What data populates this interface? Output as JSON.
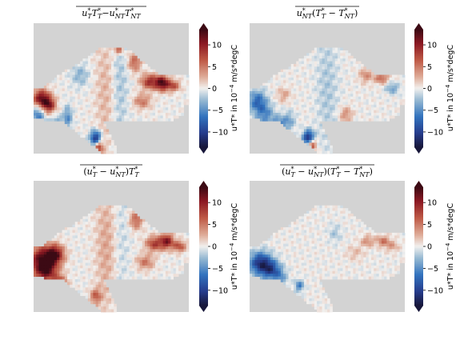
{
  "chart_data": [
    {
      "type": "heatmap",
      "title_plain": "u_T*T_T* − u_NT*T_NT*",
      "title": {
        "t1": "u",
        "t1sup": "*",
        "t1sub": "T",
        "t2": "T",
        "t2sup": "*",
        "t2sub": "T",
        "minus": "−",
        "t3": "u",
        "t3sup": "*",
        "t3sub": "NT",
        "t4": "T",
        "t4sup": "*",
        "t4sub": "NT"
      },
      "colorbar": {
        "label": "u*T* in 10⁻⁴ m/s*degC",
        "label_main": "u*T* in 10",
        "label_exp": "−4",
        "label_unit": " m/s*degC",
        "ticks": [
          10,
          5,
          0,
          -5,
          -10
        ],
        "tick_labels": [
          "10",
          "5",
          "0",
          "−5",
          "−10"
        ],
        "vmin": -13.5,
        "vmax": 13.5,
        "extend": "both",
        "colormap": "balance"
      },
      "features": [
        {
          "x": 0.47,
          "y": 0.52,
          "value": 2.5,
          "sx": 0.05,
          "sy": 0.35
        },
        {
          "x": 0.55,
          "y": 0.45,
          "value": -2.5,
          "sx": 0.04,
          "sy": 0.4
        },
        {
          "x": 0.05,
          "y": 0.58,
          "value": 12,
          "sx": 0.04,
          "sy": 0.05
        },
        {
          "x": 0.1,
          "y": 0.63,
          "value": 9,
          "sx": 0.03,
          "sy": 0.04
        },
        {
          "x": 0.03,
          "y": 0.7,
          "value": -6,
          "sx": 0.03,
          "sy": 0.06
        },
        {
          "x": 0.15,
          "y": 0.8,
          "value": -7,
          "sx": 0.03,
          "sy": 0.05
        },
        {
          "x": 0.22,
          "y": 0.72,
          "value": -5,
          "sx": 0.02,
          "sy": 0.06
        },
        {
          "x": 0.4,
          "y": 0.88,
          "value": -11,
          "sx": 0.025,
          "sy": 0.04
        },
        {
          "x": 0.42,
          "y": 0.95,
          "value": 8,
          "sx": 0.02,
          "sy": 0.03
        },
        {
          "x": 0.65,
          "y": 0.3,
          "value": 6,
          "sx": 0.03,
          "sy": 0.05
        },
        {
          "x": 0.75,
          "y": 0.45,
          "value": 9,
          "sx": 0.04,
          "sy": 0.04
        },
        {
          "x": 0.83,
          "y": 0.46,
          "value": 12,
          "sx": 0.03,
          "sy": 0.04
        },
        {
          "x": 0.9,
          "y": 0.48,
          "value": 7,
          "sx": 0.03,
          "sy": 0.03
        },
        {
          "x": 0.7,
          "y": 0.6,
          "value": 5,
          "sx": 0.04,
          "sy": 0.04
        },
        {
          "x": 0.55,
          "y": 0.2,
          "value": 7,
          "sx": 0.02,
          "sy": 0.03
        },
        {
          "x": 0.3,
          "y": 0.4,
          "value": -3,
          "sx": 0.04,
          "sy": 0.06
        }
      ]
    },
    {
      "type": "heatmap",
      "title_plain": "u_NT*(T_T* − T_NT*)",
      "title": {
        "t1": "u",
        "t1sup": "*",
        "t1sub": "NT",
        "open": "(",
        "t2": "T",
        "t2sup": "*",
        "t2sub": "T",
        "minus": " − ",
        "t3": "T",
        "t3sup": "*",
        "t3sub": "NT",
        "close": ")"
      },
      "colorbar": {
        "label": "u*T* in 10⁻⁴ m/s*degC",
        "label_main": "u*T* in 10",
        "label_exp": "−4",
        "label_unit": " m/s*degC",
        "ticks": [
          10,
          5,
          0,
          -5,
          -10
        ],
        "tick_labels": [
          "10",
          "5",
          "0",
          "−5",
          "−10"
        ],
        "vmin": -13.5,
        "vmax": 13.5,
        "extend": "both",
        "colormap": "balance"
      },
      "features": [
        {
          "x": 0.05,
          "y": 0.6,
          "value": -7,
          "sx": 0.04,
          "sy": 0.06
        },
        {
          "x": 0.1,
          "y": 0.7,
          "value": -5,
          "sx": 0.04,
          "sy": 0.06
        },
        {
          "x": 0.18,
          "y": 0.8,
          "value": -8,
          "sx": 0.03,
          "sy": 0.05
        },
        {
          "x": 0.25,
          "y": 0.75,
          "value": -4,
          "sx": 0.03,
          "sy": 0.05
        },
        {
          "x": 0.38,
          "y": 0.88,
          "value": -12,
          "sx": 0.025,
          "sy": 0.04
        },
        {
          "x": 0.4,
          "y": 0.93,
          "value": 9,
          "sx": 0.02,
          "sy": 0.03
        },
        {
          "x": 0.75,
          "y": 0.4,
          "value": 4,
          "sx": 0.03,
          "sy": 0.04
        },
        {
          "x": 0.85,
          "y": 0.42,
          "value": 6,
          "sx": 0.03,
          "sy": 0.03
        },
        {
          "x": 0.92,
          "y": 0.5,
          "value": -4,
          "sx": 0.03,
          "sy": 0.03
        },
        {
          "x": 0.5,
          "y": 0.5,
          "value": -2,
          "sx": 0.05,
          "sy": 0.35
        },
        {
          "x": 0.62,
          "y": 0.7,
          "value": 4,
          "sx": 0.03,
          "sy": 0.04
        },
        {
          "x": 0.22,
          "y": 0.55,
          "value": 3,
          "sx": 0.03,
          "sy": 0.04
        }
      ]
    },
    {
      "type": "heatmap",
      "title_plain": "(u_T* − u_NT*)T_T*",
      "title": {
        "open": "(",
        "t1": "u",
        "t1sup": "*",
        "t1sub": "T",
        "minus": " − ",
        "t2": "u",
        "t2sup": "*",
        "t2sub": "NT",
        "close": ")",
        "t3": "T",
        "t3sup": "*",
        "t3sub": "T"
      },
      "colorbar": {
        "label": "u*T* in 10⁻⁴ m/s*degC",
        "label_main": "u*T* in 10",
        "label_exp": "−4",
        "label_unit": " m/s*degC",
        "ticks": [
          10,
          5,
          0,
          -5,
          -10
        ],
        "tick_labels": [
          "10",
          "5",
          "0",
          "−5",
          "−10"
        ],
        "vmin": -13.5,
        "vmax": 13.5,
        "extend": "both",
        "colormap": "balance"
      },
      "features": [
        {
          "x": 0.06,
          "y": 0.6,
          "value": 13,
          "sx": 0.06,
          "sy": 0.07
        },
        {
          "x": 0.14,
          "y": 0.56,
          "value": 10,
          "sx": 0.04,
          "sy": 0.05
        },
        {
          "x": 0.08,
          "y": 0.7,
          "value": 9,
          "sx": 0.05,
          "sy": 0.05
        },
        {
          "x": 0.17,
          "y": 0.78,
          "value": 8,
          "sx": 0.03,
          "sy": 0.04
        },
        {
          "x": 0.4,
          "y": 0.88,
          "value": 6,
          "sx": 0.025,
          "sy": 0.04
        },
        {
          "x": 0.47,
          "y": 0.5,
          "value": 3,
          "sx": 0.05,
          "sy": 0.35
        },
        {
          "x": 0.56,
          "y": 0.45,
          "value": -1.5,
          "sx": 0.04,
          "sy": 0.4
        },
        {
          "x": 0.66,
          "y": 0.3,
          "value": 6,
          "sx": 0.03,
          "sy": 0.05
        },
        {
          "x": 0.78,
          "y": 0.48,
          "value": 8,
          "sx": 0.04,
          "sy": 0.04
        },
        {
          "x": 0.86,
          "y": 0.46,
          "value": 10,
          "sx": 0.03,
          "sy": 0.04
        },
        {
          "x": 0.94,
          "y": 0.5,
          "value": 7,
          "sx": 0.03,
          "sy": 0.03
        },
        {
          "x": 0.72,
          "y": 0.62,
          "value": 5,
          "sx": 0.04,
          "sy": 0.04
        }
      ]
    },
    {
      "type": "heatmap",
      "title_plain": "(u_T* − u_NT*)(T_T* − T_NT*)",
      "title": {
        "open": "(",
        "t1": "u",
        "t1sup": "*",
        "t1sub": "T",
        "minus": " − ",
        "t2": "u",
        "t2sup": "*",
        "t2sub": "NT",
        "close": ")",
        "open2": "(",
        "t3": "T",
        "t3sup": "*",
        "t3sub": "T",
        "minus2": " − ",
        "t4": "T",
        "t4sup": "*",
        "t4sub": "NT",
        "close2": ")"
      },
      "colorbar": {
        "label": "u*T* in 10⁻⁴ m/s*degC",
        "label_main": "u*T* in 10",
        "label_exp": "−4",
        "label_unit": " m/s*degC",
        "ticks": [
          10,
          5,
          0,
          -5,
          -10
        ],
        "tick_labels": [
          "10",
          "5",
          "0",
          "−5",
          "−10"
        ],
        "vmin": -13.5,
        "vmax": 13.5,
        "extend": "both",
        "colormap": "balance"
      },
      "features": [
        {
          "x": 0.07,
          "y": 0.63,
          "value": -11,
          "sx": 0.05,
          "sy": 0.06
        },
        {
          "x": 0.14,
          "y": 0.68,
          "value": -8,
          "sx": 0.04,
          "sy": 0.05
        },
        {
          "x": 0.2,
          "y": 0.74,
          "value": -4,
          "sx": 0.03,
          "sy": 0.05
        },
        {
          "x": 0.32,
          "y": 0.8,
          "value": -6,
          "sx": 0.02,
          "sy": 0.03
        },
        {
          "x": 0.76,
          "y": 0.46,
          "value": 4,
          "sx": 0.03,
          "sy": 0.03
        },
        {
          "x": 0.86,
          "y": 0.46,
          "value": 5,
          "sx": 0.03,
          "sy": 0.03
        },
        {
          "x": 0.92,
          "y": 0.5,
          "value": 3,
          "sx": 0.03,
          "sy": 0.03
        },
        {
          "x": 0.55,
          "y": 0.4,
          "value": -2,
          "sx": 0.03,
          "sy": 0.05
        },
        {
          "x": 0.68,
          "y": 0.55,
          "value": 2,
          "sx": 0.04,
          "sy": 0.04
        }
      ]
    }
  ]
}
